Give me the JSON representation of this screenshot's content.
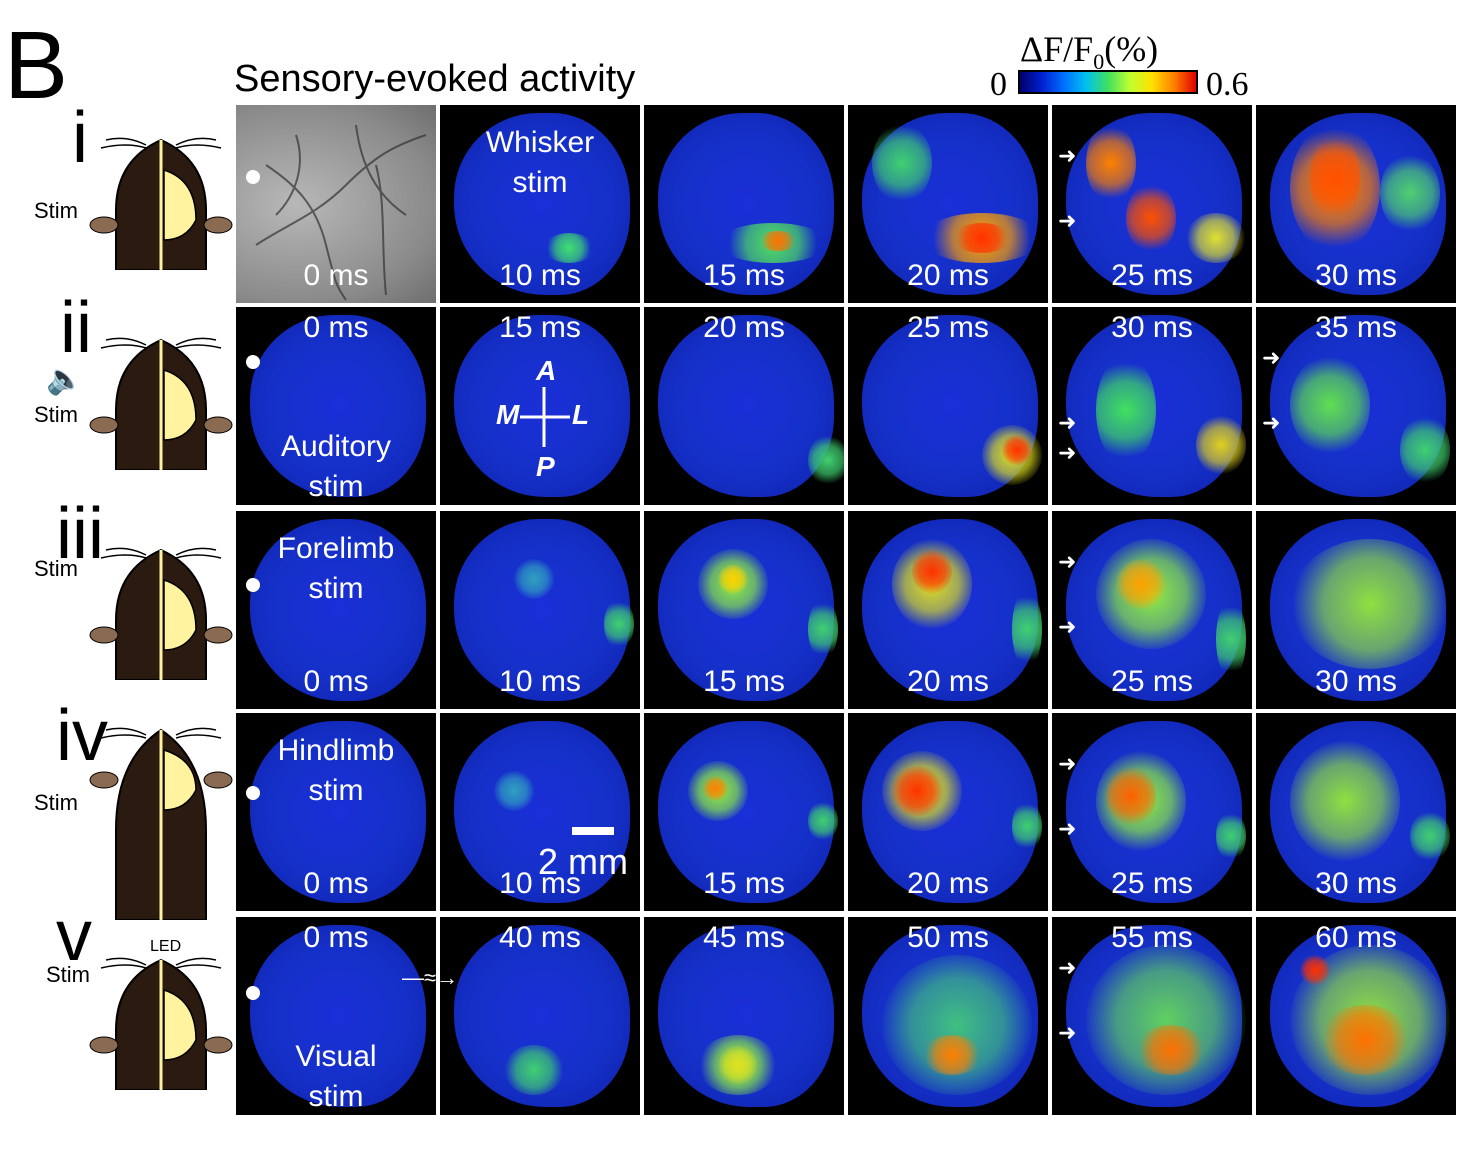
{
  "panel_letter": "B",
  "title": "Sensory-evoked activity",
  "colorbar": {
    "label_main": "ΔF/F",
    "label_sub": "0",
    "label_suffix": "(%)",
    "min": "0",
    "max": "0.6"
  },
  "rows": [
    {
      "roman": "i",
      "stim": "Stim",
      "labels": [
        "Whisker",
        "stim"
      ],
      "times": [
        "0 ms",
        "10 ms",
        "15 ms",
        "20 ms",
        "25 ms",
        "30 ms"
      ]
    },
    {
      "roman": "ii",
      "stim": "Stim",
      "labels": [
        "Auditory",
        "stim"
      ],
      "times": [
        "0 ms",
        "15 ms",
        "20 ms",
        "25 ms",
        "30 ms",
        "35 ms"
      ]
    },
    {
      "roman": "iii",
      "stim": "Stim",
      "labels": [
        "Forelimb",
        "stim"
      ],
      "times": [
        "0 ms",
        "10 ms",
        "15 ms",
        "20 ms",
        "25 ms",
        "30 ms"
      ]
    },
    {
      "roman": "iv",
      "stim": "Stim",
      "labels": [
        "Hindlimb",
        "stim"
      ],
      "times": [
        "0 ms",
        "10 ms",
        "15 ms",
        "20 ms",
        "25 ms",
        "30 ms"
      ]
    },
    {
      "roman": "v",
      "stim": "Stim",
      "led": "LED",
      "labels": [
        "Visual",
        "stim"
      ],
      "times": [
        "0 ms",
        "40 ms",
        "45 ms",
        "50 ms",
        "55 ms",
        "60 ms"
      ]
    }
  ],
  "axes": {
    "a": "A",
    "p": "P",
    "m": "M",
    "l": "L"
  },
  "scale": "2 mm"
}
